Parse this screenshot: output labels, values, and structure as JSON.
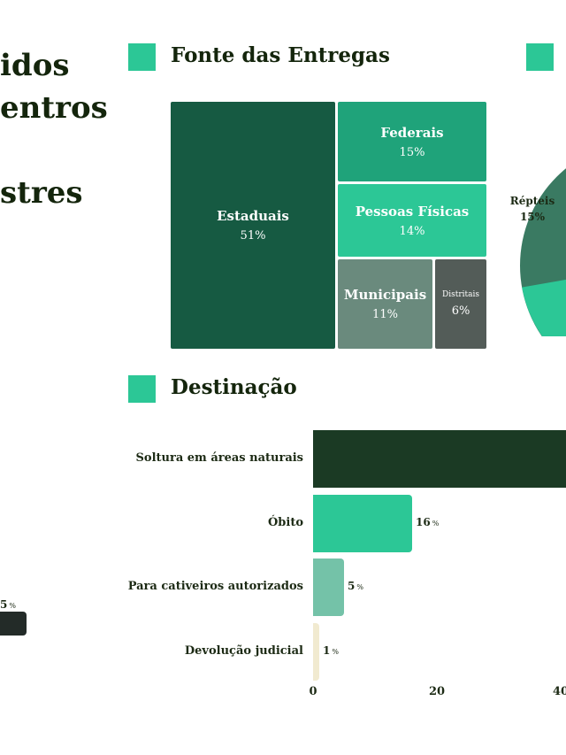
{
  "header": {
    "title_lines": [
      "idos",
      "entros",
      "",
      "stres"
    ]
  },
  "sections": {
    "fonte": "Fonte das Entregas",
    "destinacao": "Destinação"
  },
  "colors": {
    "accent": "#2cc796",
    "dark": "#1b3a24"
  },
  "treemap": [
    {
      "label": "Estaduais",
      "value": "51%",
      "color": "#165a42"
    },
    {
      "label": "Federais",
      "value": "15%",
      "color": "#1fa37a"
    },
    {
      "label": "Pessoas Físicas",
      "value": "14%",
      "color": "#2cc796"
    },
    {
      "label": "Municipais",
      "value": "11%",
      "color": "#6a8a7d"
    },
    {
      "label": "Distritais",
      "value": "6%",
      "color": "#535c58"
    }
  ],
  "pie": {
    "label": "Répteis",
    "value": "15%"
  },
  "left_fragment": {
    "value": "5",
    "unit": "%"
  },
  "chart_data": {
    "type": "bar",
    "orientation": "horizontal",
    "title": "Destinação",
    "categories": [
      "Soltura em áreas naturais",
      "Óbito",
      "Para cativeiros autorizados",
      "Devolução judicial"
    ],
    "values": [
      78,
      16,
      5,
      1
    ],
    "value_labels": [
      "",
      "16",
      "5",
      "1"
    ],
    "unit": "%",
    "colors": [
      "#1b3a24",
      "#2cc796",
      "#74c2a8",
      "#f1ead0"
    ],
    "xticks": [
      "0",
      "20",
      "40"
    ],
    "xlim": [
      0,
      80
    ]
  }
}
